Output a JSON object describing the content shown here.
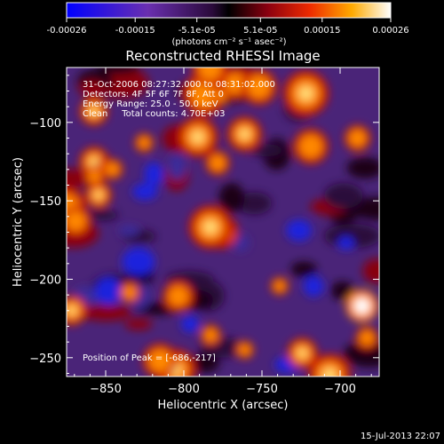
{
  "chart_data": {
    "type": "heatmap",
    "title": "Reconstructed RHESSI Image",
    "xlabel": "Heliocentric X (arcsec)",
    "ylabel": "Heliocentric Y (arcsec)",
    "xlim": [
      -875,
      -675
    ],
    "ylim": [
      -262,
      -65
    ],
    "xticks": [
      -850,
      -800,
      -750,
      -700
    ],
    "yticks": [
      -100,
      -150,
      -200,
      -250
    ],
    "colorbar": {
      "range": [
        -0.00026,
        0.00026
      ],
      "ticks": [
        "-0.00026",
        "-0.00015",
        "-5.1e-05",
        "5.1e-05",
        "0.00015",
        "0.00026"
      ],
      "label": "(photons cm⁻² s⁻¹ asec⁻²)"
    },
    "annotations": [
      "31-Oct-2006 08:27:32.000 to 08:31:02.000",
      "Detectors: 4F 5F 6F 7F 8F, Att 0",
      "Energy Range: 25.0 - 50.0 keV",
      "Clean     Total counts: 4.70E+03"
    ],
    "peak_label": "Position of Peak = [-686,-217]",
    "peak": {
      "x": -686,
      "y": -217
    },
    "footer_date": "15-Jul-2013 22:07"
  }
}
